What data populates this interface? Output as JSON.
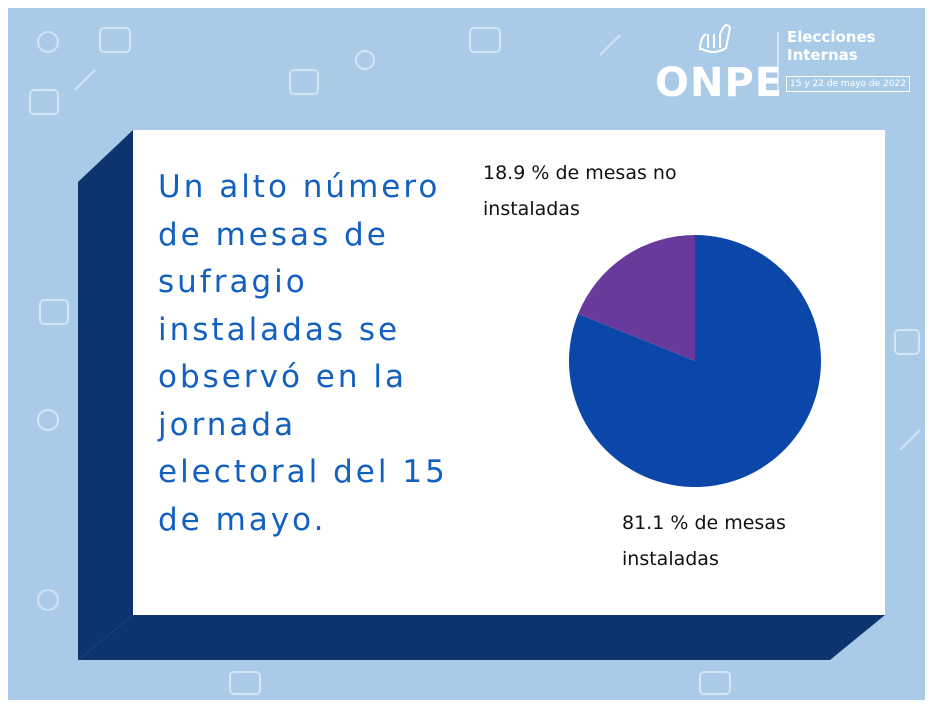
{
  "logo": {
    "name": "ONPE",
    "event_line1": "Elecciones",
    "event_line2": "Internas",
    "dates": "15 y 22 de mayo de 2022"
  },
  "headline": "Un alto número de mesas de sufragio instaladas se observó en la jornada electoral del 15 de mayo.",
  "chart_data": {
    "type": "pie",
    "values": [
      81.1,
      18.9
    ],
    "value_labels": [
      "81.1 % de mesas instaladas",
      "18.9 % de mesas no instaladas"
    ],
    "colors": [
      "#0b47a9",
      "#673a9b"
    ]
  }
}
